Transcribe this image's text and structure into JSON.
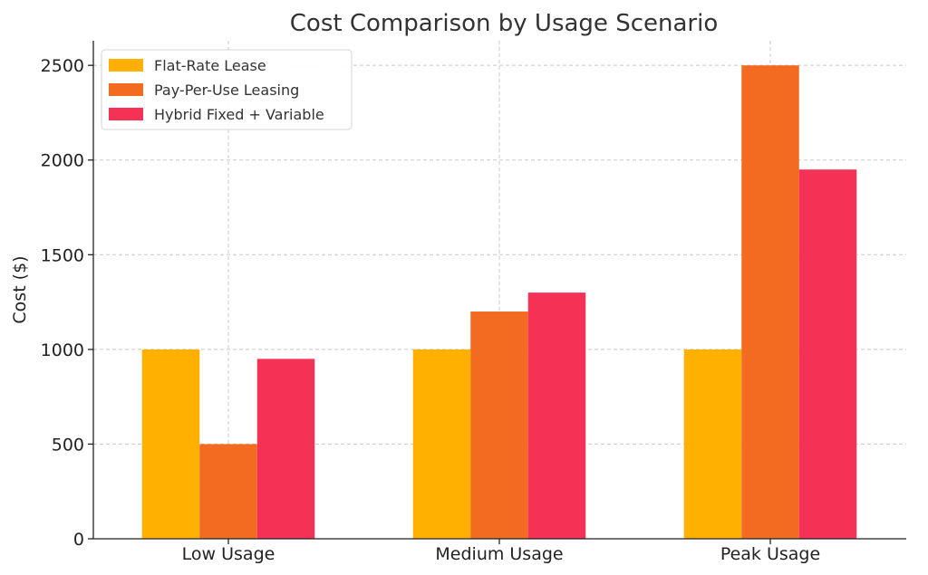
{
  "chart_data": {
    "type": "bar",
    "title": "Cost Comparison by Usage Scenario",
    "xlabel": "",
    "ylabel": "Cost ($)",
    "ylim": [
      0,
      2630
    ],
    "yticks": [
      0,
      500,
      1000,
      1500,
      2000,
      2500
    ],
    "grid": true,
    "legend_position": "top-left",
    "categories": [
      "Low Usage",
      "Medium Usage",
      "Peak Usage"
    ],
    "series": [
      {
        "name": "Flat-Rate Lease",
        "color": "#ffb000",
        "values": [
          1000,
          1000,
          1000
        ]
      },
      {
        "name": "Pay-Per-Use Leasing",
        "color": "#f26b21",
        "values": [
          500,
          1200,
          2500
        ]
      },
      {
        "name": "Hybrid Fixed + Variable",
        "color": "#f53155",
        "values": [
          950,
          1300,
          1950
        ]
      }
    ]
  }
}
